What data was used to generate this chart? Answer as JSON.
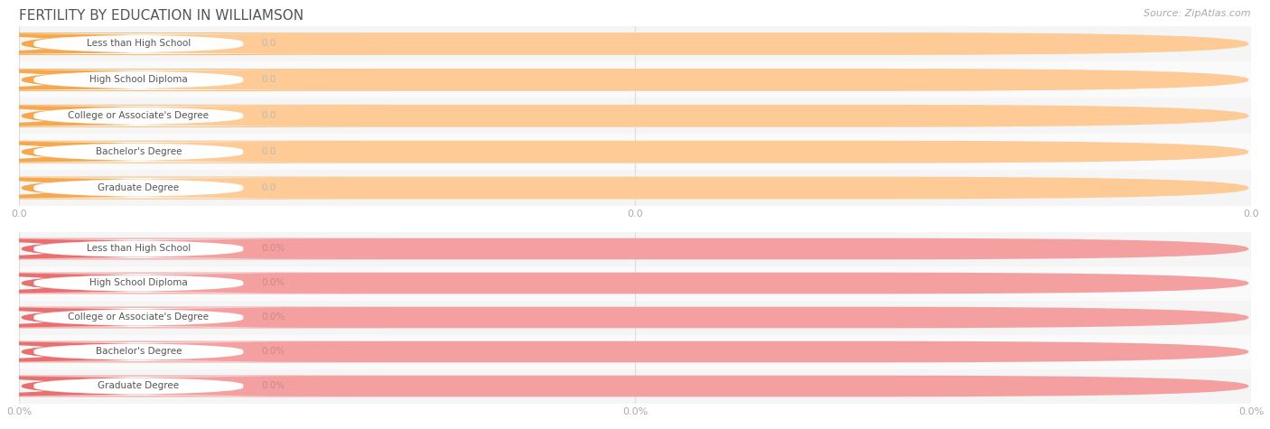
{
  "title": "FERTILITY BY EDUCATION IN WILLIAMSON",
  "source": "Source: ZipAtlas.com",
  "categories": [
    "Less than High School",
    "High School Diploma",
    "College or Associate's Degree",
    "Bachelor's Degree",
    "Graduate Degree"
  ],
  "top_values": [
    0.0,
    0.0,
    0.0,
    0.0,
    0.0
  ],
  "bottom_values": [
    0.0,
    0.0,
    0.0,
    0.0,
    0.0
  ],
  "top_bar_color": "#FECB96",
  "top_bar_left_accent": "#F5A84E",
  "top_label_bg": "#FFFFFF",
  "bottom_bar_color": "#F4A0A0",
  "bottom_bar_left_accent": "#E87070",
  "bottom_label_bg": "#FFFFFF",
  "bar_bg_outer": "#E8E8E8",
  "row_sep_color": "#FFFFFF",
  "text_color": "#555555",
  "value_text_top_color": "#999999",
  "value_text_bottom_color": "#CC6666",
  "title_color": "#555555",
  "source_color": "#AAAAAA",
  "tick_color": "#AAAAAA",
  "grid_color": "#DDDDDD",
  "top_xtick_labels": [
    "0.0",
    "0.0",
    "0.0"
  ],
  "bottom_xtick_labels": [
    "0.0%",
    "0.0%",
    "0.0%"
  ],
  "figsize": [
    14.06,
    4.75
  ],
  "dpi": 100
}
